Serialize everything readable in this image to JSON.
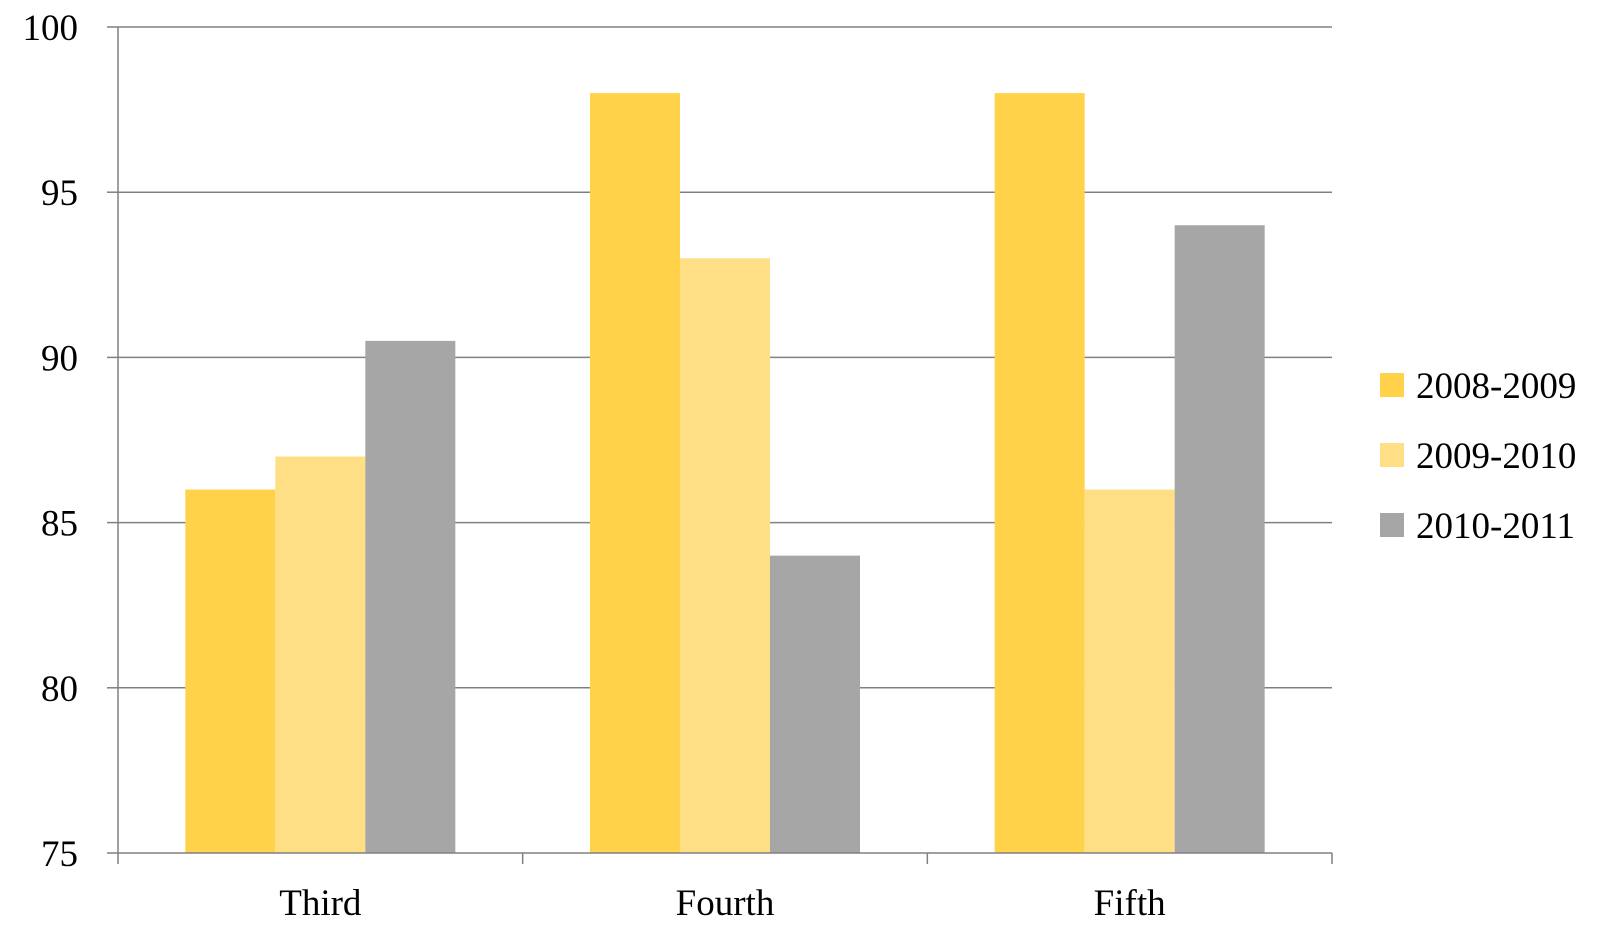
{
  "chart_data": {
    "type": "bar",
    "title": "",
    "xlabel": "",
    "ylabel": "",
    "categories": [
      "Third",
      "Fourth",
      "Fifth"
    ],
    "series": [
      {
        "name": "2008-2009",
        "values": [
          86,
          98,
          98
        ],
        "color": "#FFD24A"
      },
      {
        "name": "2009-2010",
        "values": [
          87,
          93,
          86
        ],
        "color": "#FFDF85"
      },
      {
        "name": "2010-2011",
        "values": [
          90.5,
          84,
          94
        ],
        "color": "#A6A6A6"
      }
    ],
    "ylim": [
      75,
      100
    ],
    "yticks": [
      75,
      80,
      85,
      90,
      95,
      100
    ],
    "grid": true,
    "legend_position": "right",
    "colors": {
      "gridline": "#808080",
      "axis": "#808080"
    }
  }
}
